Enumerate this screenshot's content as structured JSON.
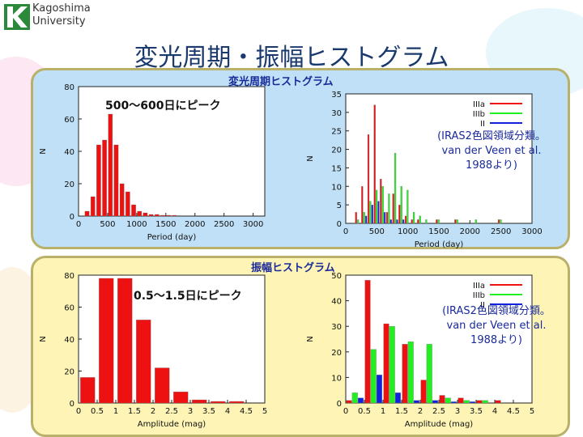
{
  "header": {
    "university_line1": "Kagoshima",
    "university_line2": "University",
    "title": "変光周期・振幅ヒストグラム"
  },
  "colors": {
    "red": "#ee1111",
    "green": "#22ee22",
    "blue": "#1122dd",
    "top_panel_bg": "#bfe0f6",
    "bottom_panel_bg": "#fdf4b6"
  },
  "top": {
    "panel_title": "変光周期ヒストグラム",
    "peak_label": "500～600日にピーク",
    "note_lines": [
      "(IRAS2色図領域分類。",
      "van der Veen et al.",
      "1988より)"
    ]
  },
  "bottom": {
    "panel_title": "振幅ヒストグラム",
    "peak_label": "0.5～1.5日にピーク",
    "note_lines": [
      "(IRAS2色図領域分類。",
      "van der Veen et al.",
      "1988より)"
    ]
  },
  "chart_data": [
    {
      "id": "period-all",
      "type": "bar",
      "xlabel": "Period (day)",
      "ylabel": "N",
      "xlim": [
        0,
        3200
      ],
      "ylim": [
        0,
        80
      ],
      "xticks": [
        0,
        500,
        1000,
        1500,
        2000,
        2500,
        3000
      ],
      "yticks": [
        0,
        20,
        40,
        60,
        80
      ],
      "bin_width": 100,
      "series": [
        {
          "name": "All",
          "color": "#ee1111",
          "x": [
            150,
            250,
            350,
            450,
            550,
            650,
            750,
            850,
            950,
            1050,
            1150,
            1250,
            1350,
            1450,
            1550,
            1650
          ],
          "values": [
            3,
            12,
            44,
            47,
            63,
            44,
            20,
            15,
            7,
            3,
            2,
            1,
            1,
            0.5,
            0.5,
            0.5
          ]
        }
      ]
    },
    {
      "id": "period-iras",
      "type": "bar",
      "xlabel": "Period (day)",
      "ylabel": "N",
      "xlim": [
        0,
        3000
      ],
      "ylim": [
        0,
        35
      ],
      "xticks": [
        0,
        500,
        1000,
        1500,
        2000,
        2500,
        3000
      ],
      "yticks": [
        0,
        5,
        10,
        15,
        20,
        25,
        30,
        35
      ],
      "legend": [
        "IIIa",
        "IIIb",
        "II"
      ],
      "legend_position": "top-right",
      "series": [
        {
          "name": "IIIa",
          "color": "#ee1111",
          "x": [
            200,
            300,
            400,
            500,
            600,
            700,
            800,
            900,
            1000,
            1100,
            1200,
            1500,
            1800,
            2500
          ],
          "values": [
            3,
            10,
            24,
            32,
            12,
            3,
            8,
            5,
            2,
            1,
            1,
            1,
            1,
            1
          ]
        },
        {
          "name": "IIIb",
          "color": "#22ee22",
          "x": [
            200,
            300,
            400,
            500,
            600,
            700,
            800,
            900,
            1000,
            1100,
            1200,
            1300,
            1500,
            1800,
            2100,
            2500
          ],
          "values": [
            1,
            3,
            6,
            9,
            10,
            8,
            19,
            10,
            9,
            3,
            2,
            1,
            1,
            1,
            1,
            1
          ]
        },
        {
          "name": "II",
          "color": "#1122dd",
          "x": [
            300,
            400,
            500,
            600,
            700,
            800,
            900
          ],
          "values": [
            2,
            5,
            6,
            3,
            1,
            1,
            1
          ]
        }
      ]
    },
    {
      "id": "amplitude-all",
      "type": "bar",
      "xlabel": "Amplitude (mag)",
      "ylabel": "N",
      "xlim": [
        0,
        5
      ],
      "ylim": [
        0,
        80
      ],
      "xticks": [
        0,
        0.5,
        1,
        1.5,
        2,
        2.5,
        3,
        3.5,
        4,
        4.5,
        5
      ],
      "yticks": [
        0,
        20,
        40,
        60,
        80
      ],
      "series": [
        {
          "name": "All",
          "color": "#ee1111",
          "x": [
            0.25,
            0.75,
            1.25,
            1.75,
            2.25,
            2.75,
            3.25,
            3.75,
            4.25
          ],
          "values": [
            16,
            78,
            78,
            52,
            22,
            7,
            2,
            1,
            1
          ]
        }
      ]
    },
    {
      "id": "amplitude-iras",
      "type": "bar",
      "xlabel": "Amplitude (mag)",
      "ylabel": "N",
      "xlim": [
        0,
        5
      ],
      "ylim": [
        0,
        50
      ],
      "xticks": [
        0,
        0.5,
        1,
        1.5,
        2,
        2.5,
        3,
        3.5,
        4,
        4.5,
        5
      ],
      "yticks": [
        0,
        10,
        20,
        30,
        40,
        50
      ],
      "legend": [
        "IIIa",
        "IIIb",
        "II"
      ],
      "legend_position": "top-right",
      "series": [
        {
          "name": "IIIa",
          "color": "#ee1111",
          "x": [
            0.25,
            0.75,
            1.25,
            1.75,
            2.25,
            2.75,
            3.25,
            3.75,
            4.25
          ],
          "values": [
            1,
            48,
            31,
            23,
            9,
            3,
            2,
            1,
            1
          ]
        },
        {
          "name": "IIIb",
          "color": "#22ee22",
          "x": [
            0.25,
            0.75,
            1.25,
            1.75,
            2.25,
            2.75,
            3.25,
            3.75
          ],
          "values": [
            4,
            21,
            30,
            24,
            23,
            2,
            1,
            1
          ]
        },
        {
          "name": "II",
          "color": "#1122dd",
          "x": [
            0.25,
            0.75,
            1.25,
            1.75,
            2.25,
            2.75,
            3.25
          ],
          "values": [
            2,
            11,
            4,
            1,
            1,
            0.5,
            0.5
          ]
        }
      ]
    }
  ]
}
